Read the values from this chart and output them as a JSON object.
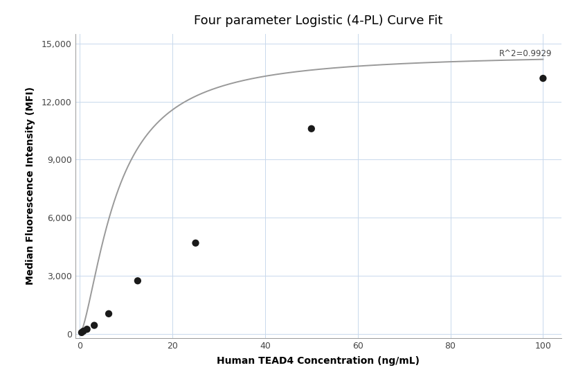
{
  "title": "Four parameter Logistic (4-PL) Curve Fit",
  "xlabel": "Human TEAD4 Concentration (ng/mL)",
  "ylabel": "Median Fluorescence Intensity (MFI)",
  "scatter_x": [
    0.4,
    0.78,
    1.56,
    3.125,
    6.25,
    12.5,
    25,
    50,
    100
  ],
  "scatter_y": [
    80,
    150,
    250,
    450,
    1050,
    2750,
    4700,
    10600,
    13200
  ],
  "dot_color": "#1a1a1a",
  "dot_size": 55,
  "curve_color": "#999999",
  "curve_linewidth": 1.4,
  "xlim": [
    -1,
    104
  ],
  "ylim": [
    -200,
    15500
  ],
  "yticks": [
    0,
    3000,
    6000,
    9000,
    12000,
    15000
  ],
  "xticks": [
    0,
    20,
    40,
    60,
    80,
    100
  ],
  "r_squared": "R^2=0.9929",
  "background_color": "#ffffff",
  "grid_color": "#c8d8ec",
  "title_fontsize": 13,
  "label_fontsize": 10,
  "tick_fontsize": 9,
  "figsize": [
    8.32,
    5.6
  ],
  "dpi": 100
}
